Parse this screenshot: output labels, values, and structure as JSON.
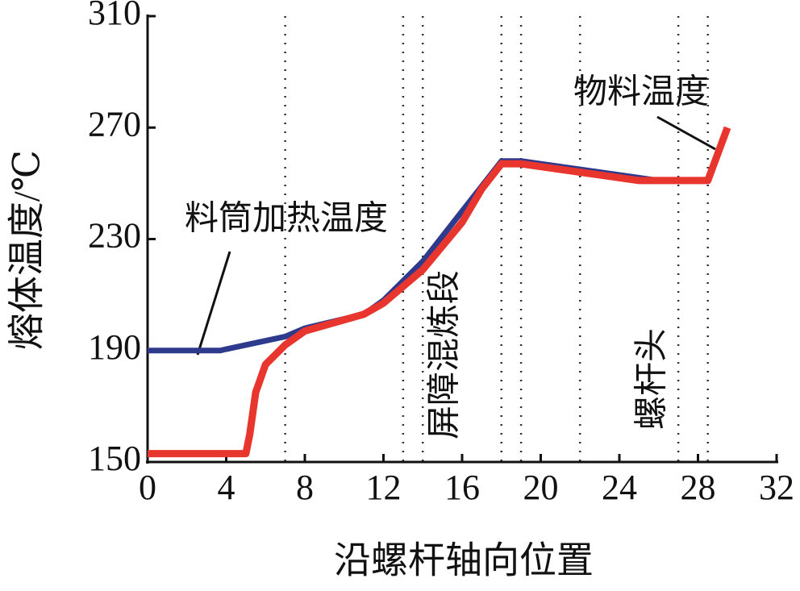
{
  "chart_data": {
    "type": "line",
    "xlabel": "沿螺杆轴向位置",
    "ylabel": "熔体温度/℃",
    "xlim": [
      0,
      32
    ],
    "xticks": [
      0,
      4,
      8,
      12,
      16,
      20,
      24,
      28,
      32
    ],
    "ylim": [
      150,
      310
    ],
    "yticks": [
      150,
      190,
      230,
      270,
      310
    ],
    "vlines": [
      7,
      13,
      14,
      18,
      19,
      22,
      27,
      28.5
    ],
    "zone_labels": [
      "屏障混炼段",
      "螺杆头"
    ],
    "series": [
      {
        "name": "料筒加热温度",
        "color": "#2e3a8c",
        "x": [
          0,
          3.7,
          4,
          7,
          8,
          11,
          12,
          14,
          16,
          18,
          19,
          22,
          26,
          28.5
        ],
        "values": [
          190,
          190,
          190.5,
          195,
          198,
          203,
          208,
          222,
          240,
          258,
          258,
          255,
          251,
          251
        ]
      },
      {
        "name": "物料温度",
        "color": "#e8352e",
        "x": [
          0,
          5,
          5.2,
          5.5,
          6,
          7,
          8,
          10,
          11,
          12,
          14,
          16,
          17,
          18,
          19,
          22,
          25,
          28.5,
          29.5
        ],
        "values": [
          153,
          153,
          160,
          175,
          185,
          192,
          197,
          201,
          203,
          207,
          219,
          236,
          248,
          257,
          257,
          254,
          251,
          251,
          270
        ]
      }
    ]
  }
}
